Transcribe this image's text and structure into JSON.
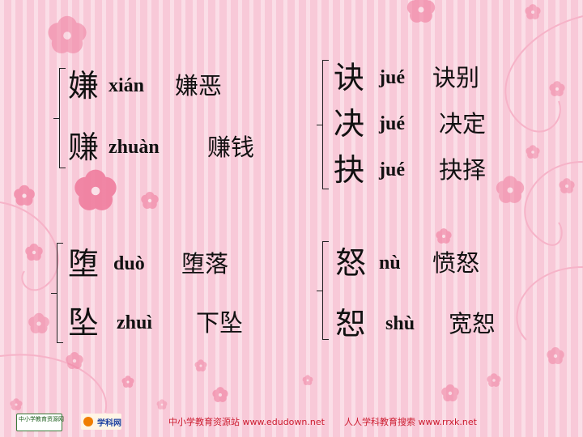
{
  "groups": [
    {
      "entries": [
        {
          "char": "嫌",
          "pinyin": "xián",
          "word": "嫌恶"
        },
        {
          "char": "赚",
          "pinyin": "zhuàn",
          "word": "赚钱"
        }
      ]
    },
    {
      "entries": [
        {
          "char": "诀",
          "pinyin": "jué",
          "word": "诀别"
        },
        {
          "char": "决",
          "pinyin": "jué",
          "word": "决定"
        },
        {
          "char": "抉",
          "pinyin": "jué",
          "word": "抉择"
        }
      ]
    },
    {
      "entries": [
        {
          "char": "堕",
          "pinyin": "duò",
          "word": "堕落"
        },
        {
          "char": "坠",
          "pinyin": "zhuì",
          "word": "下坠"
        }
      ]
    },
    {
      "entries": [
        {
          "char": "怒",
          "pinyin": "nù",
          "word": "愤怒"
        },
        {
          "char": "恕",
          "pinyin": "shù",
          "word": "宽恕"
        }
      ]
    }
  ],
  "footer": {
    "link1": "中小学教育资源站 www.edudown.net",
    "link2": "人人学科教育搜索  www.rrxk.net",
    "logo1_text": "中小学教育资源网",
    "logo2_text": "学科网"
  },
  "colors": {
    "background": "#f8c9d8",
    "flower": "#f07d9e",
    "swirl": "#f5a9c0",
    "footer_text": "#cc1d30"
  }
}
